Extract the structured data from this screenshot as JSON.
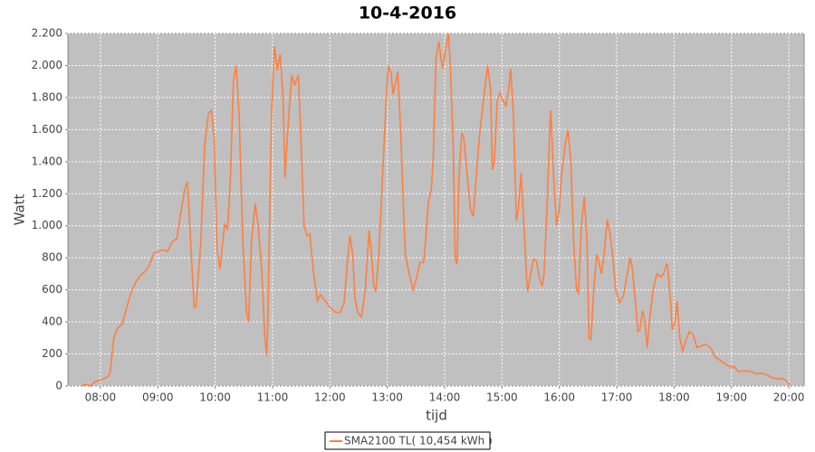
{
  "chart_data": {
    "type": "line",
    "title": "10-4-2016",
    "x_label": "tijd",
    "y_label": "Watt",
    "x": [
      "07:40",
      "07:45",
      "07:50",
      "07:54",
      "08:01",
      "08:07",
      "08:10",
      "08:14",
      "08:18",
      "08:23",
      "08:27",
      "08:32",
      "08:37",
      "08:42",
      "08:46",
      "08:51",
      "08:56",
      "09:01",
      "09:05",
      "09:10",
      "09:15",
      "09:20",
      "09:24",
      "09:29",
      "09:31",
      "09:34",
      "09:38",
      "09:40",
      "09:45",
      "09:49",
      "09:53",
      "09:56",
      "09:59",
      "10:02",
      "10:05",
      "10:08",
      "10:10",
      "10:13",
      "10:16",
      "10:19",
      "10:22",
      "10:25",
      "10:29",
      "10:33",
      "10:35",
      "10:38",
      "10:42",
      "10:45",
      "10:49",
      "10:52",
      "10:54",
      "10:55",
      "10:59",
      "11:02",
      "11:05",
      "11:08",
      "11:11",
      "11:13",
      "11:16",
      "11:20",
      "11:23",
      "11:27",
      "11:30",
      "11:33",
      "11:36",
      "11:39",
      "11:43",
      "11:47",
      "11:50",
      "11:54",
      "12:00",
      "12:06",
      "12:11",
      "12:15",
      "12:18",
      "12:21",
      "12:24",
      "12:26",
      "12:29",
      "12:33",
      "12:37",
      "12:41",
      "12:43",
      "12:46",
      "12:48",
      "12:51",
      "12:55",
      "12:59",
      "13:01",
      "13:04",
      "13:06",
      "13:09",
      "13:11",
      "13:14",
      "13:17",
      "13:19",
      "13:23",
      "13:27",
      "13:31",
      "13:34",
      "13:38",
      "13:40",
      "13:43",
      "13:46",
      "13:48",
      "13:51",
      "13:54",
      "13:56",
      "13:58",
      "14:01",
      "14:04",
      "14:06",
      "14:09",
      "14:11",
      "14:13",
      "14:15",
      "14:18",
      "14:20",
      "14:24",
      "14:27",
      "14:30",
      "14:33",
      "14:37",
      "14:41",
      "14:45",
      "14:48",
      "14:50",
      "14:52",
      "14:55",
      "14:58",
      "15:01",
      "15:04",
      "15:07",
      "15:09",
      "15:12",
      "15:15",
      "15:17",
      "15:20",
      "15:23",
      "15:26",
      "15:27",
      "15:30",
      "15:33",
      "15:36",
      "15:39",
      "15:42",
      "15:44",
      "15:47",
      "15:50",
      "15:51",
      "15:54",
      "15:57",
      "16:00",
      "16:02",
      "16:06",
      "16:09",
      "16:12",
      "16:15",
      "16:18",
      "16:20",
      "16:23",
      "16:26",
      "16:29",
      "16:31",
      "16:33",
      "16:36",
      "16:39",
      "16:41",
      "16:44",
      "16:47",
      "16:50",
      "16:53",
      "16:56",
      "16:59",
      "17:03",
      "17:07",
      "17:11",
      "17:14",
      "17:16",
      "17:20",
      "17:22",
      "17:24",
      "17:27",
      "17:29",
      "17:32",
      "17:34",
      "17:38",
      "17:42",
      "17:46",
      "17:49",
      "17:52",
      "17:53",
      "17:56",
      "17:58",
      "18:01",
      "18:03",
      "18:06",
      "18:09",
      "18:12",
      "18:16",
      "18:20",
      "18:24",
      "18:28",
      "18:33",
      "18:38",
      "18:43",
      "18:48",
      "18:53",
      "18:58",
      "19:03",
      "19:07",
      "19:14",
      "19:21",
      "19:26",
      "19:31",
      "19:37",
      "19:43",
      "19:48",
      "19:54",
      "19:58",
      "20:01"
    ],
    "series": [
      {
        "name": "SMA2100 TL( 10,454 kWh )",
        "color": "#ff7f3f",
        "values": [
          0,
          10,
          0,
          25,
          40,
          55,
          80,
          300,
          360,
          390,
          480,
          580,
          650,
          690,
          710,
          750,
          830,
          840,
          850,
          840,
          900,
          920,
          1080,
          1250,
          1270,
          950,
          490,
          500,
          900,
          1500,
          1700,
          1720,
          1550,
          850,
          730,
          900,
          1010,
          980,
          1300,
          1900,
          2000,
          1700,
          900,
          450,
          400,
          900,
          1140,
          1000,
          700,
          300,
          190,
          400,
          1700,
          2120,
          1970,
          2070,
          1800,
          1300,
          1600,
          1940,
          1880,
          1940,
          1500,
          1000,
          940,
          950,
          700,
          530,
          570,
          540,
          490,
          460,
          460,
          520,
          750,
          940,
          820,
          560,
          460,
          430,
          600,
          970,
          860,
          620,
          590,
          800,
          1300,
          1800,
          2000,
          1950,
          1820,
          1900,
          1960,
          1600,
          1100,
          820,
          700,
          600,
          680,
          770,
          770,
          900,
          1150,
          1220,
          1400,
          2050,
          2150,
          2050,
          1980,
          2100,
          2200,
          2000,
          1500,
          800,
          760,
          1300,
          1580,
          1550,
          1300,
          1100,
          1060,
          1300,
          1600,
          1800,
          2000,
          1850,
          1350,
          1400,
          1780,
          1830,
          1780,
          1750,
          1850,
          1980,
          1700,
          1030,
          1100,
          1330,
          1000,
          650,
          590,
          700,
          790,
          780,
          680,
          620,
          700,
          1100,
          1600,
          1720,
          1300,
          1000,
          1100,
          1300,
          1500,
          1600,
          1400,
          900,
          600,
          580,
          1000,
          1180,
          900,
          300,
          290,
          600,
          820,
          780,
          700,
          830,
          1040,
          950,
          800,
          600,
          520,
          560,
          700,
          800,
          750,
          500,
          340,
          350,
          470,
          420,
          240,
          400,
          600,
          700,
          680,
          700,
          760,
          760,
          550,
          350,
          400,
          530,
          300,
          220,
          280,
          340,
          320,
          240,
          250,
          260,
          240,
          180,
          160,
          140,
          120,
          120,
          90,
          95,
          90,
          75,
          80,
          70,
          50,
          45,
          45,
          30,
          5
        ]
      }
    ],
    "xlim": [
      "07:26",
      "20:16"
    ],
    "xticks": [
      "08:00",
      "09:00",
      "10:00",
      "11:00",
      "12:00",
      "13:00",
      "14:00",
      "15:00",
      "16:00",
      "17:00",
      "18:00",
      "19:00",
      "20:00"
    ],
    "ylim": [
      0,
      2200
    ],
    "yticks": [
      0,
      200,
      400,
      600,
      800,
      {
        "value": 1000,
        "label": "1.000"
      },
      {
        "value": 1200,
        "label": "1.200"
      },
      {
        "value": 1400,
        "label": "1.400"
      },
      {
        "value": 1600,
        "label": "1.600"
      },
      {
        "value": 1800,
        "label": "1.800"
      },
      {
        "value": 2000,
        "label": "2.000"
      },
      {
        "value": 2200,
        "label": "2.200"
      }
    ],
    "grid": true,
    "plot_background": "#c0c0c0",
    "legend_position": "bottom"
  }
}
